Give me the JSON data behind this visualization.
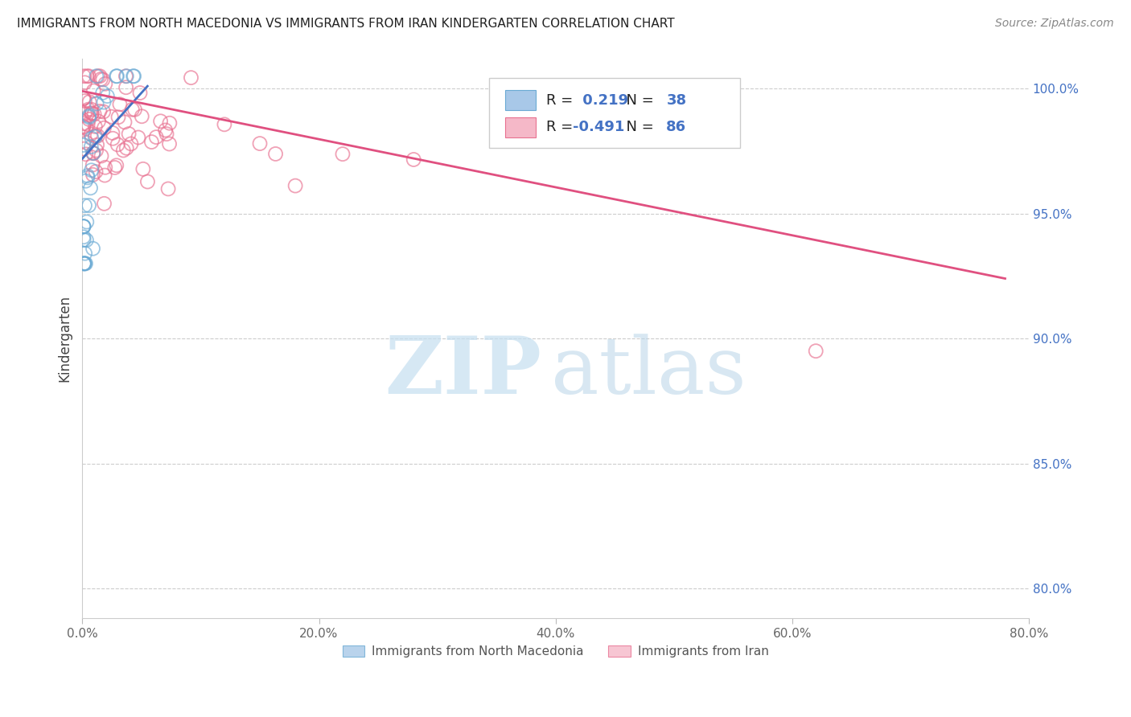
{
  "title": "IMMIGRANTS FROM NORTH MACEDONIA VS IMMIGRANTS FROM IRAN KINDERGARTEN CORRELATION CHART",
  "source": "Source: ZipAtlas.com",
  "ylabel": "Kindergarten",
  "xlim": [
    0.0,
    0.8
  ],
  "ylim": [
    0.788,
    1.012
  ],
  "ytick_vals": [
    0.8,
    0.85,
    0.9,
    0.95,
    1.0
  ],
  "ytick_labels": [
    "80.0%",
    "85.0%",
    "90.0%",
    "95.0%",
    "100.0%"
  ],
  "xtick_vals": [
    0.0,
    0.2,
    0.4,
    0.6,
    0.8
  ],
  "xtick_labels": [
    "0.0%",
    "20.0%",
    "40.0%",
    "60.0%",
    "80.0%"
  ],
  "blue_R": 0.219,
  "blue_N": 38,
  "pink_R": -0.491,
  "pink_N": 86,
  "blue_color": "#a8c8e8",
  "blue_edge_color": "#6aaad4",
  "pink_color": "#f5b8c8",
  "pink_edge_color": "#e87090",
  "blue_line_color": "#4472c4",
  "pink_line_color": "#e05080",
  "watermark_zip_color": "#c5dff0",
  "watermark_atlas_color": "#b8d5e8",
  "grid_color": "#cccccc",
  "title_color": "#222222",
  "source_color": "#888888",
  "ylabel_color": "#444444",
  "right_tick_color": "#4472c4",
  "bottom_tick_color": "#666666",
  "legend_face_color": "#ffffff",
  "legend_edge_color": "#cccccc",
  "blue_line_x0": 0.0,
  "blue_line_x1": 0.055,
  "blue_line_y0": 0.972,
  "blue_line_y1": 1.001,
  "pink_line_x0": 0.0,
  "pink_line_x1": 0.78,
  "pink_line_y0": 0.999,
  "pink_line_y1": 0.924
}
